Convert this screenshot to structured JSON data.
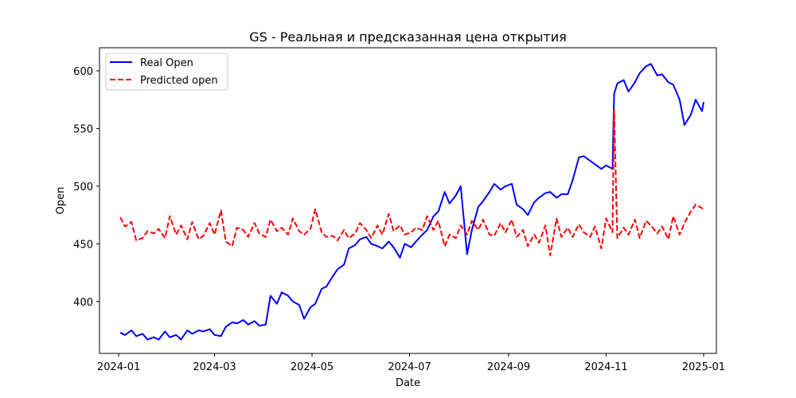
{
  "chart_data": {
    "type": "line",
    "title": "GS - Реальная и предсказанная цена открытия",
    "xlabel": "Date",
    "ylabel": "Open",
    "xlim": [
      "2023-12-20",
      "2025-01-09"
    ],
    "ylim": [
      355,
      620
    ],
    "x_ticks": [
      "2024-01-01",
      "2024-03-01",
      "2024-05-01",
      "2024-07-01",
      "2024-09-01",
      "2024-11-01",
      "2025-01-01"
    ],
    "x_tick_labels": [
      "2024-01",
      "2024-03",
      "2024-05",
      "2024-07",
      "2024-09",
      "2024-11",
      "2025-01"
    ],
    "y_ticks": [
      400,
      450,
      500,
      550,
      600
    ],
    "grid": false,
    "legend_position": "top-left",
    "series": [
      {
        "name": "Real Open",
        "color": "#0000ff",
        "style": "solid",
        "points": [
          [
            "2024-01-02",
            373
          ],
          [
            "2024-01-05",
            371
          ],
          [
            "2024-01-09",
            375
          ],
          [
            "2024-01-12",
            370
          ],
          [
            "2024-01-16",
            372
          ],
          [
            "2024-01-19",
            367
          ],
          [
            "2024-01-23",
            369
          ],
          [
            "2024-01-26",
            367
          ],
          [
            "2024-01-30",
            374
          ],
          [
            "2024-02-02",
            369
          ],
          [
            "2024-02-06",
            371
          ],
          [
            "2024-02-09",
            367
          ],
          [
            "2024-02-13",
            375
          ],
          [
            "2024-02-16",
            372
          ],
          [
            "2024-02-20",
            375
          ],
          [
            "2024-02-23",
            374
          ],
          [
            "2024-02-27",
            376
          ],
          [
            "2024-03-01",
            371
          ],
          [
            "2024-03-05",
            370
          ],
          [
            "2024-03-08",
            378
          ],
          [
            "2024-03-12",
            382
          ],
          [
            "2024-03-15",
            381
          ],
          [
            "2024-03-19",
            384
          ],
          [
            "2024-03-22",
            380
          ],
          [
            "2024-03-26",
            383
          ],
          [
            "2024-03-29",
            379
          ],
          [
            "2024-04-02",
            380
          ],
          [
            "2024-04-05",
            405
          ],
          [
            "2024-04-09",
            398
          ],
          [
            "2024-04-12",
            408
          ],
          [
            "2024-04-16",
            405
          ],
          [
            "2024-04-19",
            400
          ],
          [
            "2024-04-23",
            397
          ],
          [
            "2024-04-26",
            385
          ],
          [
            "2024-04-30",
            395
          ],
          [
            "2024-05-03",
            398
          ],
          [
            "2024-05-07",
            411
          ],
          [
            "2024-05-10",
            413
          ],
          [
            "2024-05-14",
            422
          ],
          [
            "2024-05-17",
            428
          ],
          [
            "2024-05-21",
            432
          ],
          [
            "2024-05-24",
            446
          ],
          [
            "2024-05-28",
            449
          ],
          [
            "2024-05-31",
            454
          ],
          [
            "2024-06-04",
            456
          ],
          [
            "2024-06-07",
            450
          ],
          [
            "2024-06-11",
            448
          ],
          [
            "2024-06-14",
            446
          ],
          [
            "2024-06-18",
            452
          ],
          [
            "2024-06-21",
            447
          ],
          [
            "2024-06-25",
            438
          ],
          [
            "2024-06-28",
            450
          ],
          [
            "2024-07-02",
            447
          ],
          [
            "2024-07-05",
            452
          ],
          [
            "2024-07-09",
            458
          ],
          [
            "2024-07-12",
            462
          ],
          [
            "2024-07-16",
            474
          ],
          [
            "2024-07-19",
            478
          ],
          [
            "2024-07-23",
            495
          ],
          [
            "2024-07-26",
            485
          ],
          [
            "2024-07-30",
            492
          ],
          [
            "2024-08-02",
            500
          ],
          [
            "2024-08-06",
            441
          ],
          [
            "2024-08-09",
            462
          ],
          [
            "2024-08-13",
            482
          ],
          [
            "2024-08-16",
            487
          ],
          [
            "2024-08-20",
            495
          ],
          [
            "2024-08-23",
            502
          ],
          [
            "2024-08-27",
            497
          ],
          [
            "2024-08-30",
            500
          ],
          [
            "2024-09-03",
            502
          ],
          [
            "2024-09-06",
            484
          ],
          [
            "2024-09-10",
            480
          ],
          [
            "2024-09-13",
            475
          ],
          [
            "2024-09-17",
            486
          ],
          [
            "2024-09-20",
            490
          ],
          [
            "2024-09-24",
            494
          ],
          [
            "2024-09-27",
            495
          ],
          [
            "2024-10-01",
            490
          ],
          [
            "2024-10-04",
            493
          ],
          [
            "2024-10-08",
            493
          ],
          [
            "2024-10-11",
            505
          ],
          [
            "2024-10-15",
            525
          ],
          [
            "2024-10-18",
            526
          ],
          [
            "2024-10-22",
            522
          ],
          [
            "2024-10-25",
            519
          ],
          [
            "2024-10-29",
            515
          ],
          [
            "2024-11-01",
            518
          ],
          [
            "2024-11-05",
            515
          ],
          [
            "2024-11-06",
            580
          ],
          [
            "2024-11-08",
            589
          ],
          [
            "2024-11-12",
            592
          ],
          [
            "2024-11-15",
            582
          ],
          [
            "2024-11-19",
            590
          ],
          [
            "2024-11-22",
            598
          ],
          [
            "2024-11-26",
            604
          ],
          [
            "2024-11-29",
            606
          ],
          [
            "2024-12-03",
            596
          ],
          [
            "2024-12-06",
            597
          ],
          [
            "2024-12-10",
            590
          ],
          [
            "2024-12-13",
            588
          ],
          [
            "2024-12-17",
            575
          ],
          [
            "2024-12-20",
            553
          ],
          [
            "2024-12-24",
            562
          ],
          [
            "2024-12-27",
            575
          ],
          [
            "2024-12-31",
            565
          ],
          [
            "2025-01-01",
            573
          ]
        ]
      },
      {
        "name": "Predicted open",
        "color": "#ff0000",
        "style": "dashed",
        "points": [
          [
            "2024-01-02",
            473
          ],
          [
            "2024-01-05",
            465
          ],
          [
            "2024-01-09",
            469
          ],
          [
            "2024-01-12",
            453
          ],
          [
            "2024-01-16",
            455
          ],
          [
            "2024-01-19",
            461
          ],
          [
            "2024-01-23",
            459
          ],
          [
            "2024-01-26",
            463
          ],
          [
            "2024-01-30",
            455
          ],
          [
            "2024-02-02",
            474
          ],
          [
            "2024-02-06",
            458
          ],
          [
            "2024-02-09",
            466
          ],
          [
            "2024-02-13",
            454
          ],
          [
            "2024-02-16",
            469
          ],
          [
            "2024-02-20",
            454
          ],
          [
            "2024-02-23",
            457
          ],
          [
            "2024-02-27",
            468
          ],
          [
            "2024-03-01",
            458
          ],
          [
            "2024-03-05",
            479
          ],
          [
            "2024-03-08",
            452
          ],
          [
            "2024-03-12",
            448
          ],
          [
            "2024-03-15",
            464
          ],
          [
            "2024-03-19",
            462
          ],
          [
            "2024-03-22",
            456
          ],
          [
            "2024-03-26",
            468
          ],
          [
            "2024-03-29",
            459
          ],
          [
            "2024-04-02",
            456
          ],
          [
            "2024-04-05",
            471
          ],
          [
            "2024-04-09",
            461
          ],
          [
            "2024-04-12",
            464
          ],
          [
            "2024-04-16",
            458
          ],
          [
            "2024-04-19",
            472
          ],
          [
            "2024-04-23",
            461
          ],
          [
            "2024-04-26",
            458
          ],
          [
            "2024-04-30",
            463
          ],
          [
            "2024-05-03",
            480
          ],
          [
            "2024-05-07",
            460
          ],
          [
            "2024-05-10",
            456
          ],
          [
            "2024-05-14",
            457
          ],
          [
            "2024-05-17",
            453
          ],
          [
            "2024-05-21",
            462
          ],
          [
            "2024-05-24",
            455
          ],
          [
            "2024-05-28",
            459
          ],
          [
            "2024-05-31",
            468
          ],
          [
            "2024-06-04",
            462
          ],
          [
            "2024-06-07",
            455
          ],
          [
            "2024-06-11",
            466
          ],
          [
            "2024-06-14",
            458
          ],
          [
            "2024-06-18",
            476
          ],
          [
            "2024-06-21",
            461
          ],
          [
            "2024-06-25",
            466
          ],
          [
            "2024-06-28",
            458
          ],
          [
            "2024-07-02",
            460
          ],
          [
            "2024-07-05",
            464
          ],
          [
            "2024-07-09",
            462
          ],
          [
            "2024-07-12",
            474
          ],
          [
            "2024-07-16",
            462
          ],
          [
            "2024-07-19",
            470
          ],
          [
            "2024-07-23",
            448
          ],
          [
            "2024-07-26",
            458
          ],
          [
            "2024-07-30",
            455
          ],
          [
            "2024-08-02",
            466
          ],
          [
            "2024-08-06",
            458
          ],
          [
            "2024-08-09",
            470
          ],
          [
            "2024-08-13",
            462
          ],
          [
            "2024-08-16",
            471
          ],
          [
            "2024-08-20",
            458
          ],
          [
            "2024-08-23",
            457
          ],
          [
            "2024-08-27",
            468
          ],
          [
            "2024-08-30",
            460
          ],
          [
            "2024-09-03",
            471
          ],
          [
            "2024-09-06",
            456
          ],
          [
            "2024-09-10",
            462
          ],
          [
            "2024-09-13",
            448
          ],
          [
            "2024-09-17",
            458
          ],
          [
            "2024-09-20",
            451
          ],
          [
            "2024-09-24",
            466
          ],
          [
            "2024-09-27",
            440
          ],
          [
            "2024-10-01",
            472
          ],
          [
            "2024-10-04",
            456
          ],
          [
            "2024-10-08",
            464
          ],
          [
            "2024-10-11",
            456
          ],
          [
            "2024-10-15",
            467
          ],
          [
            "2024-10-18",
            460
          ],
          [
            "2024-10-22",
            456
          ],
          [
            "2024-10-25",
            465
          ],
          [
            "2024-10-29",
            446
          ],
          [
            "2024-11-01",
            472
          ],
          [
            "2024-11-05",
            460
          ],
          [
            "2024-11-06",
            566
          ],
          [
            "2024-11-08",
            455
          ],
          [
            "2024-11-12",
            464
          ],
          [
            "2024-11-15",
            458
          ],
          [
            "2024-11-19",
            471
          ],
          [
            "2024-11-22",
            455
          ],
          [
            "2024-11-26",
            470
          ],
          [
            "2024-11-29",
            466
          ],
          [
            "2024-12-03",
            459
          ],
          [
            "2024-12-06",
            465
          ],
          [
            "2024-12-10",
            454
          ],
          [
            "2024-12-13",
            474
          ],
          [
            "2024-12-17",
            458
          ],
          [
            "2024-12-20",
            468
          ],
          [
            "2024-12-24",
            478
          ],
          [
            "2024-12-27",
            484
          ],
          [
            "2024-12-31",
            481
          ],
          [
            "2025-01-01",
            479
          ]
        ]
      }
    ]
  }
}
